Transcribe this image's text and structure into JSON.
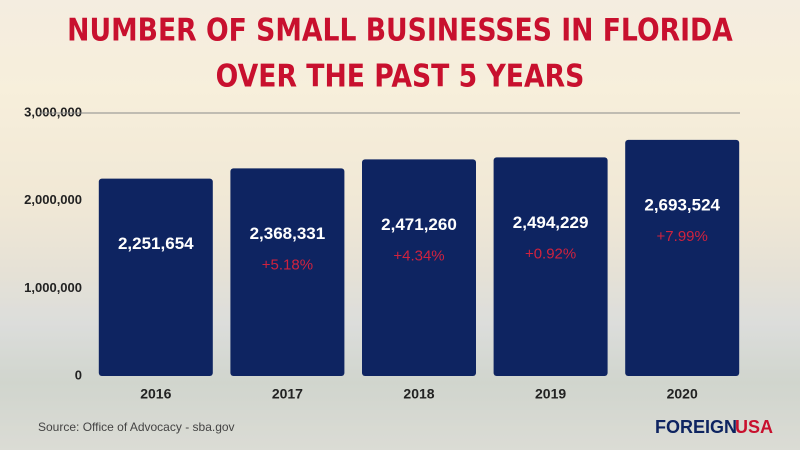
{
  "chart_data": {
    "type": "bar",
    "title": [
      "NUMBER OF SMALL BUSINESSES IN FLORIDA",
      "OVER THE PAST 5 YEARS"
    ],
    "categories": [
      "2016",
      "2017",
      "2018",
      "2019",
      "2020"
    ],
    "values": [
      2251654,
      2368331,
      2471260,
      2494229,
      2693524
    ],
    "value_labels": [
      "2,251,654",
      "2,368,331",
      "2,471,260",
      "2,494,229",
      "2,693,524"
    ],
    "growth_labels": [
      null,
      "+5.18%",
      "+4.34%",
      "+0.92%",
      "+7.99%"
    ],
    "color": "#0e2461",
    "ylim": [
      0,
      3000000
    ],
    "yticks": [
      0,
      {
        "value": 1000000,
        "label": "1,000,000"
      },
      {
        "value": 2000000,
        "label": "2,000,000"
      },
      {
        "value": 3000000,
        "label": "3,000,000"
      }
    ],
    "source": "Source: Office of Advocacy - sba.gov",
    "logo": [
      "FOREIGN",
      "USA"
    ]
  }
}
